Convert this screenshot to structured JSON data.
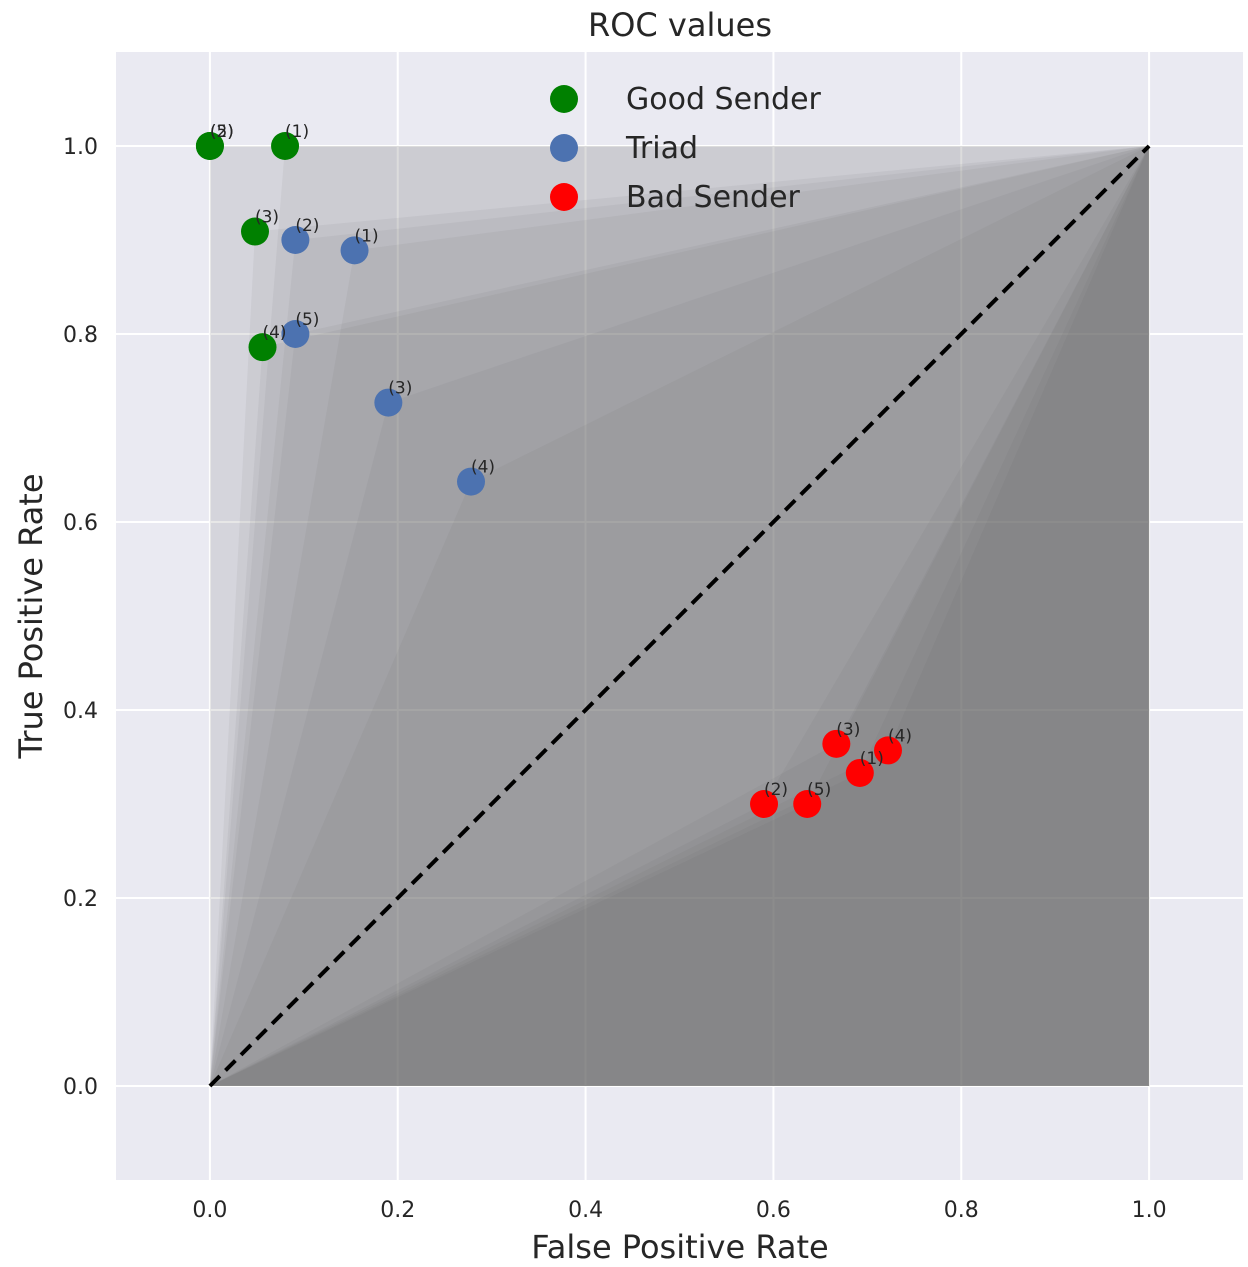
{
  "chart_data": {
    "type": "scatter",
    "title": "ROC values",
    "xlabel": "False Positive Rate",
    "ylabel": "True Positive Rate",
    "xlim": [
      -0.1,
      1.1
    ],
    "ylim": [
      -0.1,
      1.1
    ],
    "xticks": [
      "0.0",
      "0.2",
      "0.4",
      "0.6",
      "0.8",
      "1.0"
    ],
    "yticks": [
      "0.0",
      "0.2",
      "0.4",
      "0.6",
      "0.8",
      "1.0"
    ],
    "grid": true,
    "legend_position": "top-center",
    "diagonal": {
      "from": [
        0,
        0
      ],
      "to": [
        1,
        1
      ],
      "style": "dashed",
      "color": "#000000"
    },
    "series": [
      {
        "name": "Good Sender",
        "color": "#008000",
        "points": [
          {
            "x": 0.08,
            "y": 1.0,
            "label": "(1)"
          },
          {
            "x": 0.0,
            "y": 1.0,
            "label": "(2)"
          },
          {
            "x": 0.048,
            "y": 0.909,
            "label": "(3)"
          },
          {
            "x": 0.056,
            "y": 0.786,
            "label": "(4)"
          },
          {
            "x": 0.0,
            "y": 1.0,
            "label": "(5)"
          }
        ]
      },
      {
        "name": "Triad",
        "color": "#4c72b0",
        "points": [
          {
            "x": 0.154,
            "y": 0.889,
            "label": "(1)"
          },
          {
            "x": 0.091,
            "y": 0.9,
            "label": "(2)"
          },
          {
            "x": 0.19,
            "y": 0.727,
            "label": "(3)"
          },
          {
            "x": 0.278,
            "y": 0.643,
            "label": "(4)"
          },
          {
            "x": 0.091,
            "y": 0.8,
            "label": "(5)"
          }
        ]
      },
      {
        "name": "Bad Sender",
        "color": "#ff0000",
        "points": [
          {
            "x": 0.692,
            "y": 0.333,
            "label": "(1)"
          },
          {
            "x": 0.59,
            "y": 0.3,
            "label": "(2)"
          },
          {
            "x": 0.667,
            "y": 0.364,
            "label": "(3)"
          },
          {
            "x": 0.722,
            "y": 0.357,
            "label": "(4)"
          },
          {
            "x": 0.636,
            "y": 0.3,
            "label": "(5)"
          }
        ]
      }
    ]
  }
}
